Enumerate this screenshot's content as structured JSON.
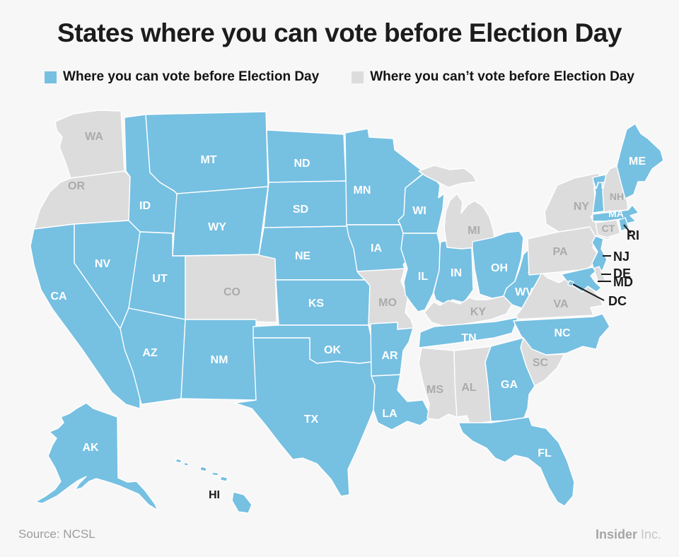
{
  "title": "States where you can vote before Election Day",
  "legend": {
    "can": {
      "label": "Where you can vote before Election Day"
    },
    "cannot": {
      "label": "Where you can’t vote before Election Day"
    }
  },
  "colors": {
    "can": "#76c0e2",
    "cannot": "#dcdcdc",
    "background": "#f7f7f7",
    "state_border": "#ffffff",
    "label_can": "#ffffff",
    "label_cannot": "#ababab",
    "label_dark": "#1a1a1a",
    "callout_line": "#1a1a1a"
  },
  "chart_data": {
    "type": "heatmap",
    "title": "States where you can vote before Election Day",
    "legend_entries": [
      "Where you can vote before Election Day",
      "Where you can’t vote before Election Day"
    ],
    "categories": [
      "can_vote_before_election_day",
      "cannot_vote_before_election_day"
    ],
    "can_vote_before": [
      "CA",
      "NV",
      "ID",
      "MT",
      "WY",
      "UT",
      "AZ",
      "NM",
      "ND",
      "SD",
      "NE",
      "KS",
      "OK",
      "TX",
      "MN",
      "IA",
      "WI",
      "IL",
      "IN",
      "OH",
      "WV",
      "TN",
      "NC",
      "GA",
      "FL",
      "AR",
      "LA",
      "ME",
      "VT",
      "MA",
      "RI",
      "NJ",
      "MD",
      "DC",
      "AK",
      "HI"
    ],
    "cannot_vote_before": [
      "WA",
      "OR",
      "CO",
      "MO",
      "KY",
      "MI",
      "MS",
      "AL",
      "SC",
      "VA",
      "PA",
      "NY",
      "CT",
      "NH",
      "DE"
    ]
  },
  "map": {
    "states": [
      {
        "abbr": "WA",
        "label": "WA",
        "status": "cannot"
      },
      {
        "abbr": "OR",
        "label": "OR",
        "status": "cannot"
      },
      {
        "abbr": "CA",
        "label": "CA",
        "status": "can"
      },
      {
        "abbr": "NV",
        "label": "NV",
        "status": "can"
      },
      {
        "abbr": "ID",
        "label": "ID",
        "status": "can"
      },
      {
        "abbr": "MT",
        "label": "MT",
        "status": "can"
      },
      {
        "abbr": "WY",
        "label": "WY",
        "status": "can"
      },
      {
        "abbr": "UT",
        "label": "UT",
        "status": "can"
      },
      {
        "abbr": "CO",
        "label": "CO",
        "status": "cannot"
      },
      {
        "abbr": "AZ",
        "label": "AZ",
        "status": "can"
      },
      {
        "abbr": "NM",
        "label": "NM",
        "status": "can"
      },
      {
        "abbr": "ND",
        "label": "ND",
        "status": "can"
      },
      {
        "abbr": "SD",
        "label": "SD",
        "status": "can"
      },
      {
        "abbr": "NE",
        "label": "NE",
        "status": "can"
      },
      {
        "abbr": "KS",
        "label": "KS",
        "status": "can"
      },
      {
        "abbr": "OK",
        "label": "OK",
        "status": "can"
      },
      {
        "abbr": "TX",
        "label": "TX",
        "status": "can"
      },
      {
        "abbr": "MN",
        "label": "MN",
        "status": "can"
      },
      {
        "abbr": "IA",
        "label": "IA",
        "status": "can"
      },
      {
        "abbr": "MO",
        "label": "MO",
        "status": "cannot"
      },
      {
        "abbr": "AR",
        "label": "AR",
        "status": "can"
      },
      {
        "abbr": "LA",
        "label": "LA",
        "status": "can"
      },
      {
        "abbr": "WI",
        "label": "WI",
        "status": "can"
      },
      {
        "abbr": "IL",
        "label": "IL",
        "status": "can"
      },
      {
        "abbr": "IN",
        "label": "IN",
        "status": "can"
      },
      {
        "abbr": "MI",
        "label": "MI",
        "status": "cannot"
      },
      {
        "abbr": "OH",
        "label": "OH",
        "status": "can"
      },
      {
        "abbr": "KY",
        "label": "KY",
        "status": "cannot"
      },
      {
        "abbr": "WV",
        "label": "WV",
        "status": "can"
      },
      {
        "abbr": "VA",
        "label": "VA",
        "status": "cannot"
      },
      {
        "abbr": "TN",
        "label": "TN",
        "status": "can"
      },
      {
        "abbr": "NC",
        "label": "NC",
        "status": "can"
      },
      {
        "abbr": "SC",
        "label": "SC",
        "status": "cannot"
      },
      {
        "abbr": "GA",
        "label": "GA",
        "status": "can"
      },
      {
        "abbr": "AL",
        "label": "AL",
        "status": "cannot"
      },
      {
        "abbr": "MS",
        "label": "MS",
        "status": "cannot"
      },
      {
        "abbr": "FL",
        "label": "FL",
        "status": "can"
      },
      {
        "abbr": "PA",
        "label": "PA",
        "status": "cannot"
      },
      {
        "abbr": "NY",
        "label": "NY",
        "status": "cannot"
      },
      {
        "abbr": "NJ",
        "label": "NJ",
        "status": "can"
      },
      {
        "abbr": "DE",
        "label": "DE",
        "status": "cannot"
      },
      {
        "abbr": "MD",
        "label": "MD",
        "status": "can"
      },
      {
        "abbr": "DC",
        "label": "DC",
        "status": "can"
      },
      {
        "abbr": "VT",
        "label": "VT",
        "status": "can"
      },
      {
        "abbr": "NH",
        "label": "NH",
        "status": "cannot"
      },
      {
        "abbr": "ME",
        "label": "ME",
        "status": "can"
      },
      {
        "abbr": "MA",
        "label": "MA",
        "status": "can"
      },
      {
        "abbr": "CT",
        "label": "CT",
        "status": "cannot"
      },
      {
        "abbr": "RI",
        "label": "RI",
        "status": "can"
      },
      {
        "abbr": "AK",
        "label": "AK",
        "status": "can"
      },
      {
        "abbr": "HI",
        "label": "HI",
        "status": "can"
      }
    ],
    "callouts": [
      "RI",
      "NJ",
      "DE",
      "MD",
      "DC"
    ]
  },
  "footer": {
    "source": "Source: NCSL",
    "brand_bold": "Insider",
    "brand_light": " Inc."
  }
}
